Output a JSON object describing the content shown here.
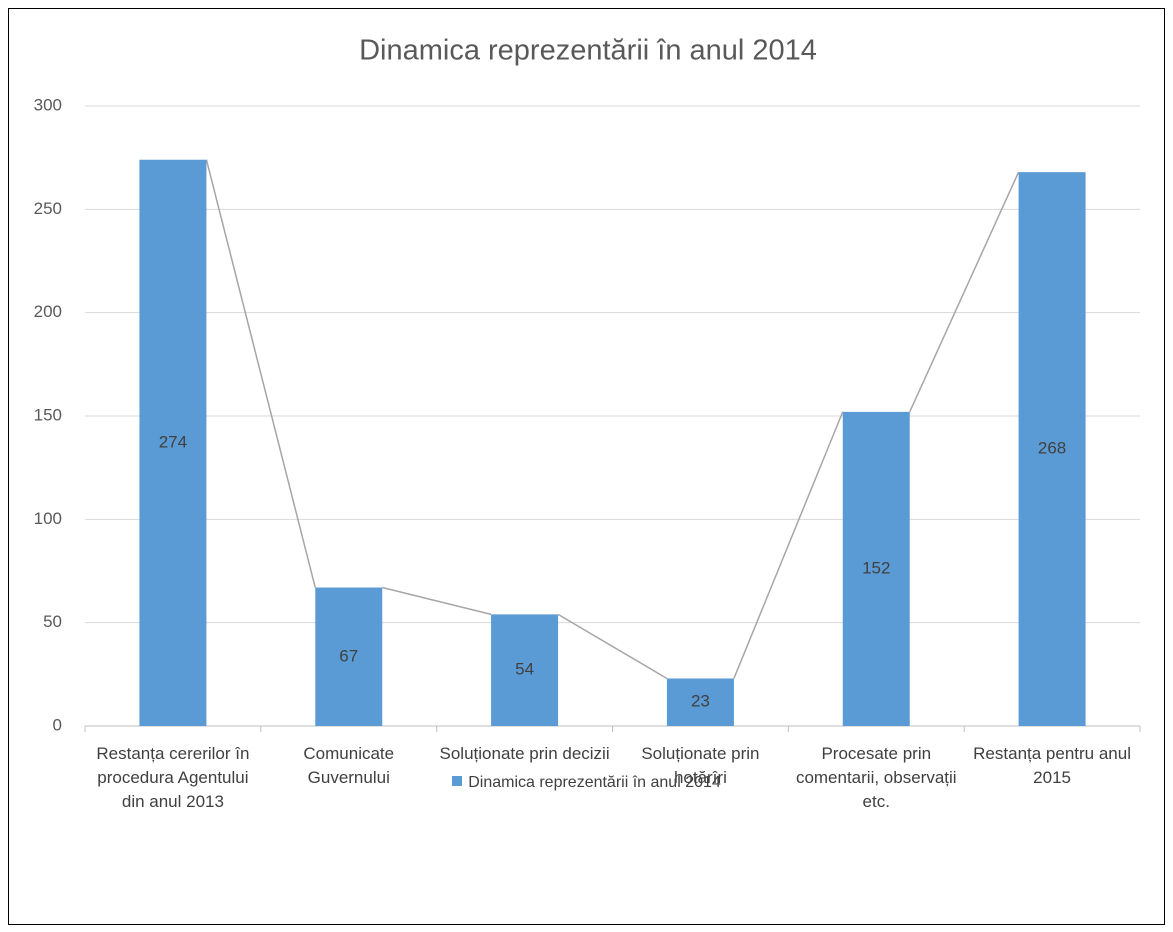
{
  "chart_data": {
    "type": "bar",
    "title": "Dinamica reprezentării în anul 2014",
    "categories": [
      "Restanța cererilor în procedura Agentului din anul 2013",
      "Comunicate Guvernului",
      "Soluționate prin decizii",
      "Soluționate prin hotărîri",
      "Procesate prin comentarii, observații etc.",
      "Restanța pentru anul 2015"
    ],
    "series": [
      {
        "name": "Dinamica reprezentării în anul 2014",
        "color": "#5b9bd5",
        "values": [
          274,
          67,
          54,
          23,
          152,
          268
        ]
      }
    ],
    "ylim": [
      0,
      300
    ],
    "yticks": [
      0,
      50,
      100,
      150,
      200,
      250,
      300
    ],
    "grid": true,
    "legend": "bottom"
  }
}
